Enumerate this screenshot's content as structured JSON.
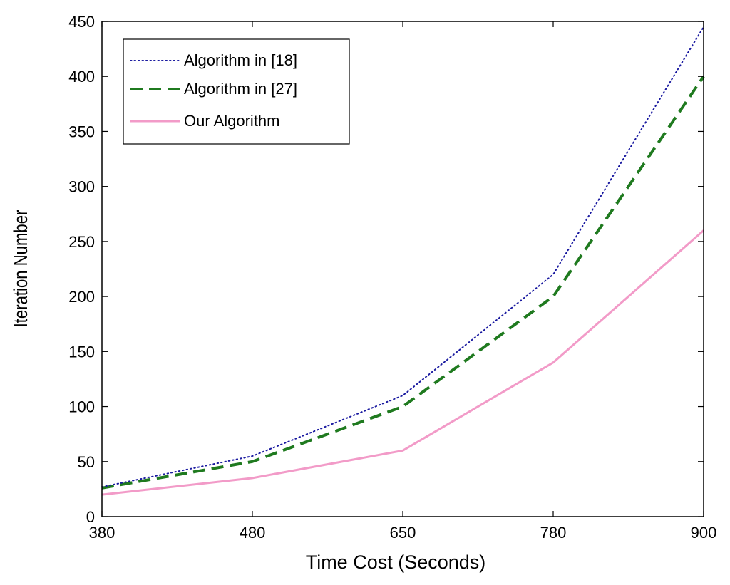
{
  "chart_data": {
    "type": "line",
    "title": "",
    "xlabel": "Time  Cost  (Seconds)",
    "ylabel": "Iteration  Number",
    "x": [
      "380",
      "480",
      "650",
      "780",
      "900"
    ],
    "ylim": [
      0,
      450
    ],
    "yticks": [
      "0",
      "50",
      "100",
      "150",
      "200",
      "250",
      "300",
      "350",
      "400",
      "450"
    ],
    "legend_position": "top-left",
    "grid": false,
    "series": [
      {
        "name": "Algorithm in [18]",
        "values": [
          27,
          55,
          110,
          220,
          445
        ],
        "style": "dotted",
        "color": "#1a1aa0"
      },
      {
        "name": "Algorithm in [27]",
        "values": [
          26,
          50,
          100,
          200,
          400
        ],
        "style": "dashed",
        "color": "#1f7a1f"
      },
      {
        "name": "Our Algorithm",
        "values": [
          20,
          35,
          60,
          140,
          260
        ],
        "style": "solid",
        "color": "#f29bc8"
      }
    ]
  }
}
